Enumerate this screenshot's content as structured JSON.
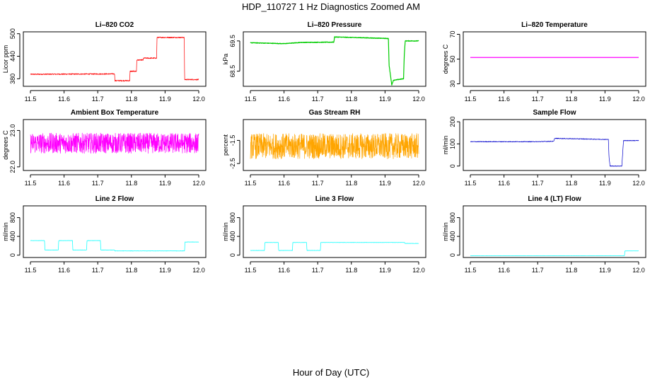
{
  "figure": {
    "title": "HDP_110727  1 Hz Diagnostics Zoomed AM",
    "xlabel": "Hour of Day (UTC)"
  },
  "chart_data": [
    {
      "type": "line",
      "title": "Li–820 CO2",
      "ylabel": "Licor ppm",
      "xlim": [
        11.5,
        12.0
      ],
      "ylim": [
        360,
        505
      ],
      "xticks": [
        11.5,
        11.6,
        11.7,
        11.8,
        11.9,
        12.0
      ],
      "xtick_labels": [
        "11.5",
        "11.6",
        "11.7",
        "11.8",
        "11.9",
        "12.0"
      ],
      "yticks": [
        380,
        440,
        500
      ],
      "ytick_labels": [
        "380",
        "440",
        "500"
      ],
      "series": [
        {
          "color": "#ff0000",
          "noise": 1.5,
          "x": [
            11.5,
            11.75,
            11.751,
            11.795,
            11.796,
            11.815,
            11.816,
            11.835,
            11.836,
            11.875,
            11.876,
            11.957,
            11.958,
            12.0
          ],
          "y": [
            392,
            393,
            375,
            375,
            400,
            400,
            430,
            430,
            435,
            435,
            490,
            490,
            378,
            378
          ]
        }
      ]
    },
    {
      "type": "line",
      "title": "Li–820 Pressure",
      "ylabel": "kPa",
      "xlim": [
        11.5,
        12.0
      ],
      "ylim": [
        68.0,
        69.8
      ],
      "xticks": [
        11.5,
        11.6,
        11.7,
        11.8,
        11.9,
        12.0
      ],
      "xtick_labels": [
        "11.5",
        "11.6",
        "11.7",
        "11.8",
        "11.9",
        "12.0"
      ],
      "yticks": [
        68.5,
        69.5
      ],
      "ytick_labels": [
        "68.5",
        "69.5"
      ],
      "series": [
        {
          "color": "#00cc00",
          "noise": 0.01,
          "x": [
            11.5,
            11.6,
            11.65,
            11.748,
            11.75,
            11.85,
            11.91,
            11.912,
            11.92,
            11.925,
            11.955,
            11.957,
            11.96,
            12.0
          ],
          "y": [
            69.44,
            69.41,
            69.45,
            69.46,
            69.63,
            69.6,
            69.58,
            68.7,
            68.05,
            68.2,
            68.25,
            69.0,
            69.5,
            69.5
          ]
        }
      ]
    },
    {
      "type": "line",
      "title": "Li–820 Temperature",
      "ylabel": "degrees C",
      "xlim": [
        11.5,
        12.0
      ],
      "ylim": [
        28,
        72
      ],
      "xticks": [
        11.5,
        11.6,
        11.7,
        11.8,
        11.9,
        12.0
      ],
      "xtick_labels": [
        "11.5",
        "11.6",
        "11.7",
        "11.8",
        "11.9",
        "12.0"
      ],
      "yticks": [
        30,
        50,
        70
      ],
      "ytick_labels": [
        "30",
        "50",
        "70"
      ],
      "series": [
        {
          "color": "#ff00ff",
          "noise": 0,
          "x": [
            11.5,
            12.0
          ],
          "y": [
            51.3,
            51.3
          ]
        }
      ]
    },
    {
      "type": "line",
      "title": "Ambient Box Temperature",
      "ylabel": "degrees C",
      "xlim": [
        11.5,
        12.0
      ],
      "ylim": [
        21.9,
        23.3
      ],
      "xticks": [
        11.5,
        11.6,
        11.7,
        11.8,
        11.9,
        12.0
      ],
      "xtick_labels": [
        "11.5",
        "11.6",
        "11.7",
        "11.8",
        "11.9",
        "12.0"
      ],
      "yticks": [
        22.0,
        23.0
      ],
      "ytick_labels": [
        "22.0",
        "23.0"
      ],
      "series": [
        {
          "color": "#ff00ff",
          "noise": 0.28,
          "x": [
            11.5,
            12.0
          ],
          "y": [
            22.65,
            22.65
          ]
        }
      ]
    },
    {
      "type": "line",
      "title": "Gas Stream RH",
      "ylabel": "percent",
      "xlim": [
        11.5,
        12.0
      ],
      "ylim": [
        -2.8,
        -0.6
      ],
      "xticks": [
        11.5,
        11.6,
        11.7,
        11.8,
        11.9,
        12.0
      ],
      "xtick_labels": [
        "11.5",
        "11.6",
        "11.7",
        "11.8",
        "11.9",
        "12.0"
      ],
      "yticks": [
        -2.5,
        -1.5
      ],
      "ytick_labels": [
        "-2.5",
        "-1.5"
      ],
      "series": [
        {
          "color": "#ffa500",
          "noise": 0.55,
          "x": [
            11.5,
            12.0
          ],
          "y": [
            -1.75,
            -1.75
          ]
        }
      ]
    },
    {
      "type": "line",
      "title": "Sample Flow",
      "ylabel": "ml/min",
      "xlim": [
        11.5,
        12.0
      ],
      "ylim": [
        -20,
        210
      ],
      "xticks": [
        11.5,
        11.6,
        11.7,
        11.8,
        11.9,
        12.0
      ],
      "xtick_labels": [
        "11.5",
        "11.6",
        "11.7",
        "11.8",
        "11.9",
        "12.0"
      ],
      "yticks": [
        0,
        100,
        200
      ],
      "ytick_labels": [
        "0",
        "100",
        "200"
      ],
      "series": [
        {
          "color": "#0000cc",
          "noise": 1.5,
          "x": [
            11.5,
            11.6,
            11.7,
            11.748,
            11.75,
            11.85,
            11.91,
            11.912,
            11.915,
            11.95,
            11.955,
            11.96,
            12.0
          ],
          "y": [
            110,
            110,
            110,
            112,
            125,
            122,
            120,
            40,
            0,
            0,
            115,
            115,
            115
          ]
        }
      ]
    },
    {
      "type": "line",
      "title": "Line 2 Flow",
      "ylabel": "ml/min",
      "xlim": [
        11.5,
        12.0
      ],
      "ylim": [
        -50,
        1050
      ],
      "xticks": [
        11.5,
        11.6,
        11.7,
        11.8,
        11.9,
        12.0
      ],
      "xtick_labels": [
        "11.5",
        "11.6",
        "11.7",
        "11.8",
        "11.9",
        "12.0"
      ],
      "yticks": [
        0,
        400,
        800
      ],
      "ytick_labels": [
        "0",
        "400",
        "800"
      ],
      "series": [
        {
          "color": "#00ffff",
          "noise": 3,
          "x": [
            11.5,
            11.542,
            11.543,
            11.583,
            11.584,
            11.625,
            11.626,
            11.667,
            11.668,
            11.708,
            11.709,
            11.75,
            11.751,
            11.958,
            11.959,
            12.0
          ],
          "y": [
            310,
            310,
            110,
            110,
            310,
            310,
            110,
            110,
            310,
            310,
            110,
            110,
            90,
            90,
            280,
            280
          ]
        }
      ]
    },
    {
      "type": "line",
      "title": "Line 3 Flow",
      "ylabel": "ml/min",
      "xlim": [
        11.5,
        12.0
      ],
      "ylim": [
        -50,
        1050
      ],
      "xticks": [
        11.5,
        11.6,
        11.7,
        11.8,
        11.9,
        12.0
      ],
      "xtick_labels": [
        "11.5",
        "11.6",
        "11.7",
        "11.8",
        "11.9",
        "12.0"
      ],
      "yticks": [
        0,
        400,
        800
      ],
      "ytick_labels": [
        "0",
        "400",
        "800"
      ],
      "series": [
        {
          "color": "#00ffff",
          "noise": 3,
          "x": [
            11.5,
            11.542,
            11.543,
            11.583,
            11.584,
            11.625,
            11.626,
            11.667,
            11.668,
            11.708,
            11.709,
            11.958,
            11.959,
            12.0
          ],
          "y": [
            100,
            100,
            270,
            270,
            100,
            100,
            270,
            270,
            100,
            100,
            270,
            270,
            250,
            250
          ]
        }
      ]
    },
    {
      "type": "line",
      "title": "Line 4 (LT) Flow",
      "ylabel": "ml/min",
      "xlim": [
        11.5,
        12.0
      ],
      "ylim": [
        -50,
        1050
      ],
      "xticks": [
        11.5,
        11.6,
        11.7,
        11.8,
        11.9,
        12.0
      ],
      "xtick_labels": [
        "11.5",
        "11.6",
        "11.7",
        "11.8",
        "11.9",
        "12.0"
      ],
      "yticks": [
        0,
        400,
        800
      ],
      "ytick_labels": [
        "0",
        "400",
        "800"
      ],
      "series": [
        {
          "color": "#00ffff",
          "noise": 1,
          "x": [
            11.5,
            11.958,
            11.959,
            12.0
          ],
          "y": [
            -10,
            -10,
            90,
            90
          ]
        }
      ]
    }
  ]
}
